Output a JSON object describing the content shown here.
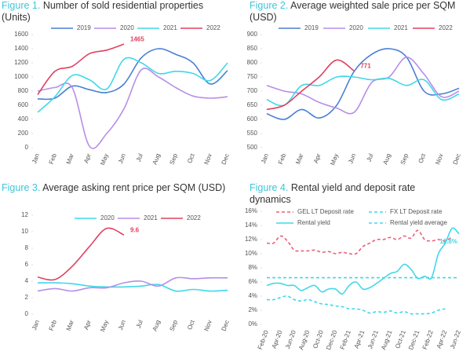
{
  "chart_data": [
    {
      "type": "line",
      "figure": "Figure 1.",
      "title": "Number of sold residential properties (Units)",
      "categories": [
        "Jan",
        "Feb",
        "Mar",
        "Apr",
        "May",
        "Jun",
        "Jul",
        "Aug",
        "Sep",
        "Oct",
        "Nov",
        "Dec"
      ],
      "ylim": [
        0,
        1600
      ],
      "yticks": [
        0,
        200,
        400,
        600,
        800,
        1000,
        1200,
        1400,
        1600
      ],
      "series": [
        {
          "name": "2019",
          "color": "#4a7fd4",
          "values": [
            690,
            700,
            870,
            820,
            780,
            900,
            1270,
            1400,
            1320,
            1200,
            900,
            1090
          ]
        },
        {
          "name": "2020",
          "color": "#b68ee8",
          "values": [
            800,
            850,
            850,
            20,
            200,
            550,
            1100,
            1000,
            850,
            730,
            700,
            720
          ]
        },
        {
          "name": "2021",
          "color": "#40d8e8",
          "values": [
            500,
            720,
            1020,
            960,
            830,
            1250,
            1200,
            1050,
            1080,
            1050,
            950,
            1200
          ]
        },
        {
          "name": "2022",
          "color": "#e0405f",
          "values": [
            750,
            1080,
            1150,
            1330,
            1380,
            1465,
            null,
            null,
            null,
            null,
            null,
            null
          ]
        }
      ],
      "label_series": 3,
      "label_index": 5
    },
    {
      "type": "line",
      "figure": "Figure 2.",
      "title": "Average weighted sale price per SQM (USD)",
      "categories": [
        "Jan",
        "Feb",
        "Mar",
        "Apr",
        "May",
        "Jun",
        "Jul",
        "Aug",
        "Sep",
        "Oct",
        "Nov",
        "Dec"
      ],
      "ylim": [
        500,
        900
      ],
      "yticks": [
        500,
        550,
        600,
        650,
        700,
        750,
        800,
        850,
        900
      ],
      "series": [
        {
          "name": "2019",
          "color": "#4a7fd4",
          "values": [
            620,
            600,
            635,
            605,
            650,
            770,
            830,
            850,
            820,
            700,
            690,
            710
          ]
        },
        {
          "name": "2020",
          "color": "#b68ee8",
          "values": [
            720,
            700,
            690,
            660,
            640,
            625,
            730,
            750,
            820,
            760,
            680,
            700
          ]
        },
        {
          "name": "2021",
          "color": "#40d8e8",
          "values": [
            670,
            650,
            720,
            720,
            750,
            750,
            740,
            745,
            720,
            740,
            670,
            690
          ]
        },
        {
          "name": "2022",
          "color": "#e0405f",
          "values": [
            635,
            650,
            700,
            750,
            810,
            771,
            null,
            null,
            null,
            null,
            null,
            null
          ]
        }
      ],
      "label_series": 3,
      "label_index": 5
    },
    {
      "type": "line",
      "figure": "Figure 3.",
      "title": "Average asking rent price per SQM (USD)",
      "categories": [
        "Jan",
        "Feb",
        "Mar",
        "Apr",
        "May",
        "Jun",
        "Jul",
        "Aug",
        "Sep",
        "Oct",
        "Nov",
        "Dec"
      ],
      "ylim": [
        0,
        12
      ],
      "yticks": [
        0,
        2,
        4,
        6,
        8,
        10,
        12
      ],
      "series": [
        {
          "name": "2020",
          "color": "#40d8e8",
          "values": [
            3.8,
            3.8,
            3.7,
            3.4,
            3.3,
            3.3,
            3.4,
            3.6,
            2.8,
            3.0,
            2.8,
            2.9
          ]
        },
        {
          "name": "2021",
          "color": "#b68ee8",
          "values": [
            2.8,
            3.1,
            2.8,
            3.2,
            3.2,
            3.8,
            4.0,
            3.4,
            4.4,
            4.3,
            4.4,
            4.4
          ]
        },
        {
          "name": "2022",
          "color": "#e0405f",
          "values": [
            4.5,
            4.2,
            5.8,
            8.2,
            10.4,
            9.6,
            null,
            null,
            null,
            null,
            null,
            null
          ]
        }
      ],
      "label_series": 2,
      "label_index": 5
    },
    {
      "type": "line",
      "figure": "Figure 4.",
      "title": "Rental yield and deposit rate dynamics",
      "categories": [
        "Feb-20",
        null,
        "Apr-20",
        null,
        "Jun-20",
        null,
        "Aug-20",
        null,
        "Oct-20",
        null,
        "Dec-20",
        null,
        "Feb-21",
        null,
        "Apr-21",
        null,
        "Jun-21",
        null,
        "Aug-21",
        null,
        "Oct-21",
        null,
        "Dec-21",
        null,
        "Feb-22",
        null,
        "Apr-22",
        null,
        "Jun-22"
      ],
      "ylim": [
        0,
        16
      ],
      "yticks": [
        {
          "value": 0,
          "label": "0%"
        },
        {
          "value": 2,
          "label": "2%"
        },
        {
          "value": 4,
          "label": "4%"
        },
        {
          "value": 6,
          "label": "6%"
        },
        {
          "value": 8,
          "label": "8%"
        },
        {
          "value": 10,
          "label": "10%"
        },
        {
          "value": 12,
          "label": "12%"
        },
        {
          "value": 14,
          "label": "14%"
        },
        {
          "value": 16,
          "label": "16%"
        }
      ],
      "series": [
        {
          "name": "GEL LT Deposit rate",
          "color": "#e8607a",
          "dash": true,
          "values": [
            11.5,
            11.5,
            12.5,
            11.8,
            10.5,
            10.4,
            10.4,
            10.5,
            10.2,
            10.3,
            10.0,
            10.2,
            10.0,
            10.0,
            11.0,
            11.5,
            12.0,
            12.0,
            12.3,
            12.0,
            12.5,
            12.2,
            13.3,
            12.0,
            11.8,
            12.0,
            11.8,
            12.4,
            null
          ]
        },
        {
          "name": "FX LT Deposit rate",
          "color": "#40d8e8",
          "dash": true,
          "values": [
            3.5,
            3.5,
            3.8,
            4.0,
            3.5,
            3.3,
            3.5,
            3.2,
            2.9,
            2.8,
            2.6,
            2.5,
            2.2,
            2.2,
            2.0,
            1.6,
            1.8,
            1.7,
            1.9,
            1.6,
            1.8,
            1.5,
            1.5,
            1.5,
            1.6,
            2.0,
            2.2,
            null,
            null
          ]
        },
        {
          "name": "Rental yield",
          "color": "#40d8e8",
          "dash": false,
          "values": [
            5.5,
            5.8,
            5.8,
            5.5,
            5.5,
            4.8,
            5.2,
            5.5,
            4.6,
            5.0,
            5.0,
            4.3,
            5.5,
            6.0,
            5.0,
            5.2,
            5.8,
            6.5,
            7.2,
            7.5,
            8.5,
            7.8,
            6.5,
            6.8,
            6.6,
            10.0,
            11.5,
            13.6,
            12.8
          ],
          "value_labels": [
            null,
            null,
            null,
            null,
            null,
            null,
            null,
            null,
            null,
            null,
            null,
            null,
            null,
            null,
            null,
            null,
            null,
            null,
            null,
            null,
            null,
            null,
            null,
            null,
            null,
            null,
            null,
            null,
            "12.8%"
          ]
        },
        {
          "name": "Rental yield average",
          "color": "#40d8e8",
          "dash": true,
          "values": [
            6.6,
            6.6,
            6.6,
            6.6,
            6.6,
            6.6,
            6.6,
            6.6,
            6.6,
            6.6,
            6.6,
            6.6,
            6.6,
            6.6,
            6.6,
            6.6,
            6.6,
            6.6,
            6.6,
            6.6,
            6.6,
            6.6,
            6.6,
            6.6,
            6.6,
            6.6,
            6.6,
            6.6,
            6.6
          ]
        }
      ],
      "label_series": 2,
      "label_index": 28
    }
  ]
}
